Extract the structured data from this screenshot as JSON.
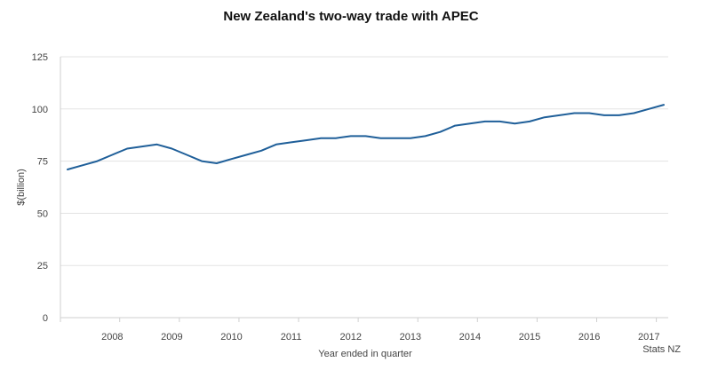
{
  "chart_data": {
    "type": "line",
    "title": "New Zealand's two-way trade with APEC",
    "xlabel": "Year ended in quarter",
    "ylabel": "$(billion)",
    "source": "Stats NZ",
    "ylim": [
      0,
      125
    ],
    "yticks": [
      "0",
      "25",
      "50",
      "75",
      "100",
      "125"
    ],
    "xticks": [
      "2008",
      "2009",
      "2010",
      "2011",
      "2012",
      "2013",
      "2014",
      "2015",
      "2016",
      "2017"
    ],
    "x": [
      "2007 Q3",
      "2007 Q4",
      "2008 Q1",
      "2008 Q2",
      "2008 Q3",
      "2008 Q4",
      "2009 Q1",
      "2009 Q2",
      "2009 Q3",
      "2009 Q4",
      "2010 Q1",
      "2010 Q2",
      "2010 Q3",
      "2010 Q4",
      "2011 Q1",
      "2011 Q2",
      "2011 Q3",
      "2011 Q4",
      "2012 Q1",
      "2012 Q2",
      "2012 Q3",
      "2012 Q4",
      "2013 Q1",
      "2013 Q2",
      "2013 Q3",
      "2013 Q4",
      "2014 Q1",
      "2014 Q2",
      "2014 Q3",
      "2014 Q4",
      "2015 Q1",
      "2015 Q2",
      "2015 Q3",
      "2015 Q4",
      "2016 Q1",
      "2016 Q2",
      "2016 Q3",
      "2016 Q4",
      "2017 Q1",
      "2017 Q2",
      "2017 Q3"
    ],
    "series": [
      {
        "values": [
          71,
          73,
          75,
          78,
          81,
          82,
          83,
          81,
          78,
          75,
          74,
          76,
          78,
          80,
          83,
          84,
          85,
          86,
          86,
          87,
          87,
          86,
          86,
          86,
          87,
          89,
          92,
          93,
          94,
          94,
          93,
          94,
          96,
          97,
          98,
          98,
          97,
          97,
          98,
          100,
          102
        ]
      }
    ],
    "grid": true,
    "color": "#1f5f99"
  }
}
